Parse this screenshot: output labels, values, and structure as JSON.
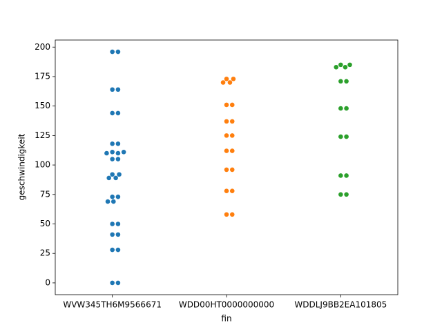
{
  "chart_data": {
    "type": "swarm",
    "x_label": "fin",
    "y_label": "geschwindigkeit",
    "categories": [
      "WVW345TH6M9566671",
      "WDD00HT0000000000",
      "WDDLJ9BB2EA101805"
    ],
    "colors": [
      "#1f77b4",
      "#ff7f0e",
      "#2ca02c"
    ],
    "values": [
      [
        196,
        196,
        164,
        164,
        144,
        144,
        118,
        118,
        111,
        110,
        110,
        111,
        105,
        105,
        92,
        89,
        89,
        92,
        73,
        73,
        69,
        69,
        50,
        50,
        41,
        41,
        28,
        28,
        0,
        0
      ],
      [
        173,
        170,
        170,
        173,
        151,
        151,
        137,
        137,
        125,
        125,
        112,
        112,
        96,
        96,
        78,
        78,
        58,
        58
      ],
      [
        185,
        183,
        183,
        185,
        171,
        171,
        148,
        148,
        124,
        124,
        91,
        91,
        75,
        75
      ]
    ],
    "ylim": [
      -10,
      206
    ],
    "yticks": [
      0,
      25,
      50,
      75,
      100,
      125,
      150,
      175,
      200
    ]
  }
}
